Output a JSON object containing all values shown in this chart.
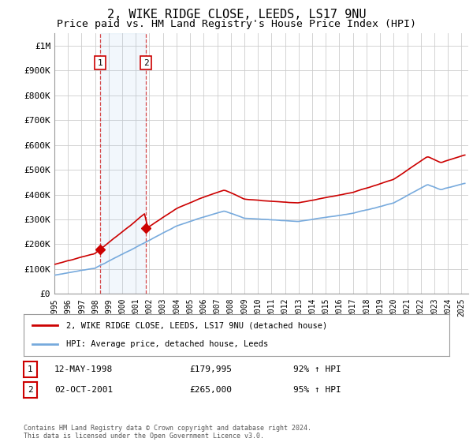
{
  "title": "2, WIKE RIDGE CLOSE, LEEDS, LS17 9NU",
  "subtitle": "Price paid vs. HM Land Registry's House Price Index (HPI)",
  "title_fontsize": 11,
  "subtitle_fontsize": 9.5,
  "background_color": "#ffffff",
  "grid_color": "#cccccc",
  "hpi_color": "#77aadd",
  "price_color": "#cc0000",
  "marker_color": "#cc0000",
  "shade_color": "#ddeeff",
  "ylim": [
    0,
    1050000
  ],
  "yticks": [
    0,
    100000,
    200000,
    300000,
    400000,
    500000,
    600000,
    700000,
    800000,
    900000,
    1000000
  ],
  "ytick_labels": [
    "£0",
    "£100K",
    "£200K",
    "£300K",
    "£400K",
    "£500K",
    "£600K",
    "£700K",
    "£800K",
    "£900K",
    "£1M"
  ],
  "sale1_date": 1998.36,
  "sale1_price": 179995,
  "sale2_date": 2001.75,
  "sale2_price": 265000,
  "sale1_label": "12-MAY-1998",
  "sale1_amount": "£179,995",
  "sale1_hpi": "92% ↑ HPI",
  "sale2_label": "02-OCT-2001",
  "sale2_amount": "£265,000",
  "sale2_hpi": "95% ↑ HPI",
  "legend1": "2, WIKE RIDGE CLOSE, LEEDS, LS17 9NU (detached house)",
  "legend2": "HPI: Average price, detached house, Leeds",
  "footer": "Contains HM Land Registry data © Crown copyright and database right 2024.\nThis data is licensed under the Open Government Licence v3.0.",
  "xmin": 1995.0,
  "xmax": 2025.5
}
